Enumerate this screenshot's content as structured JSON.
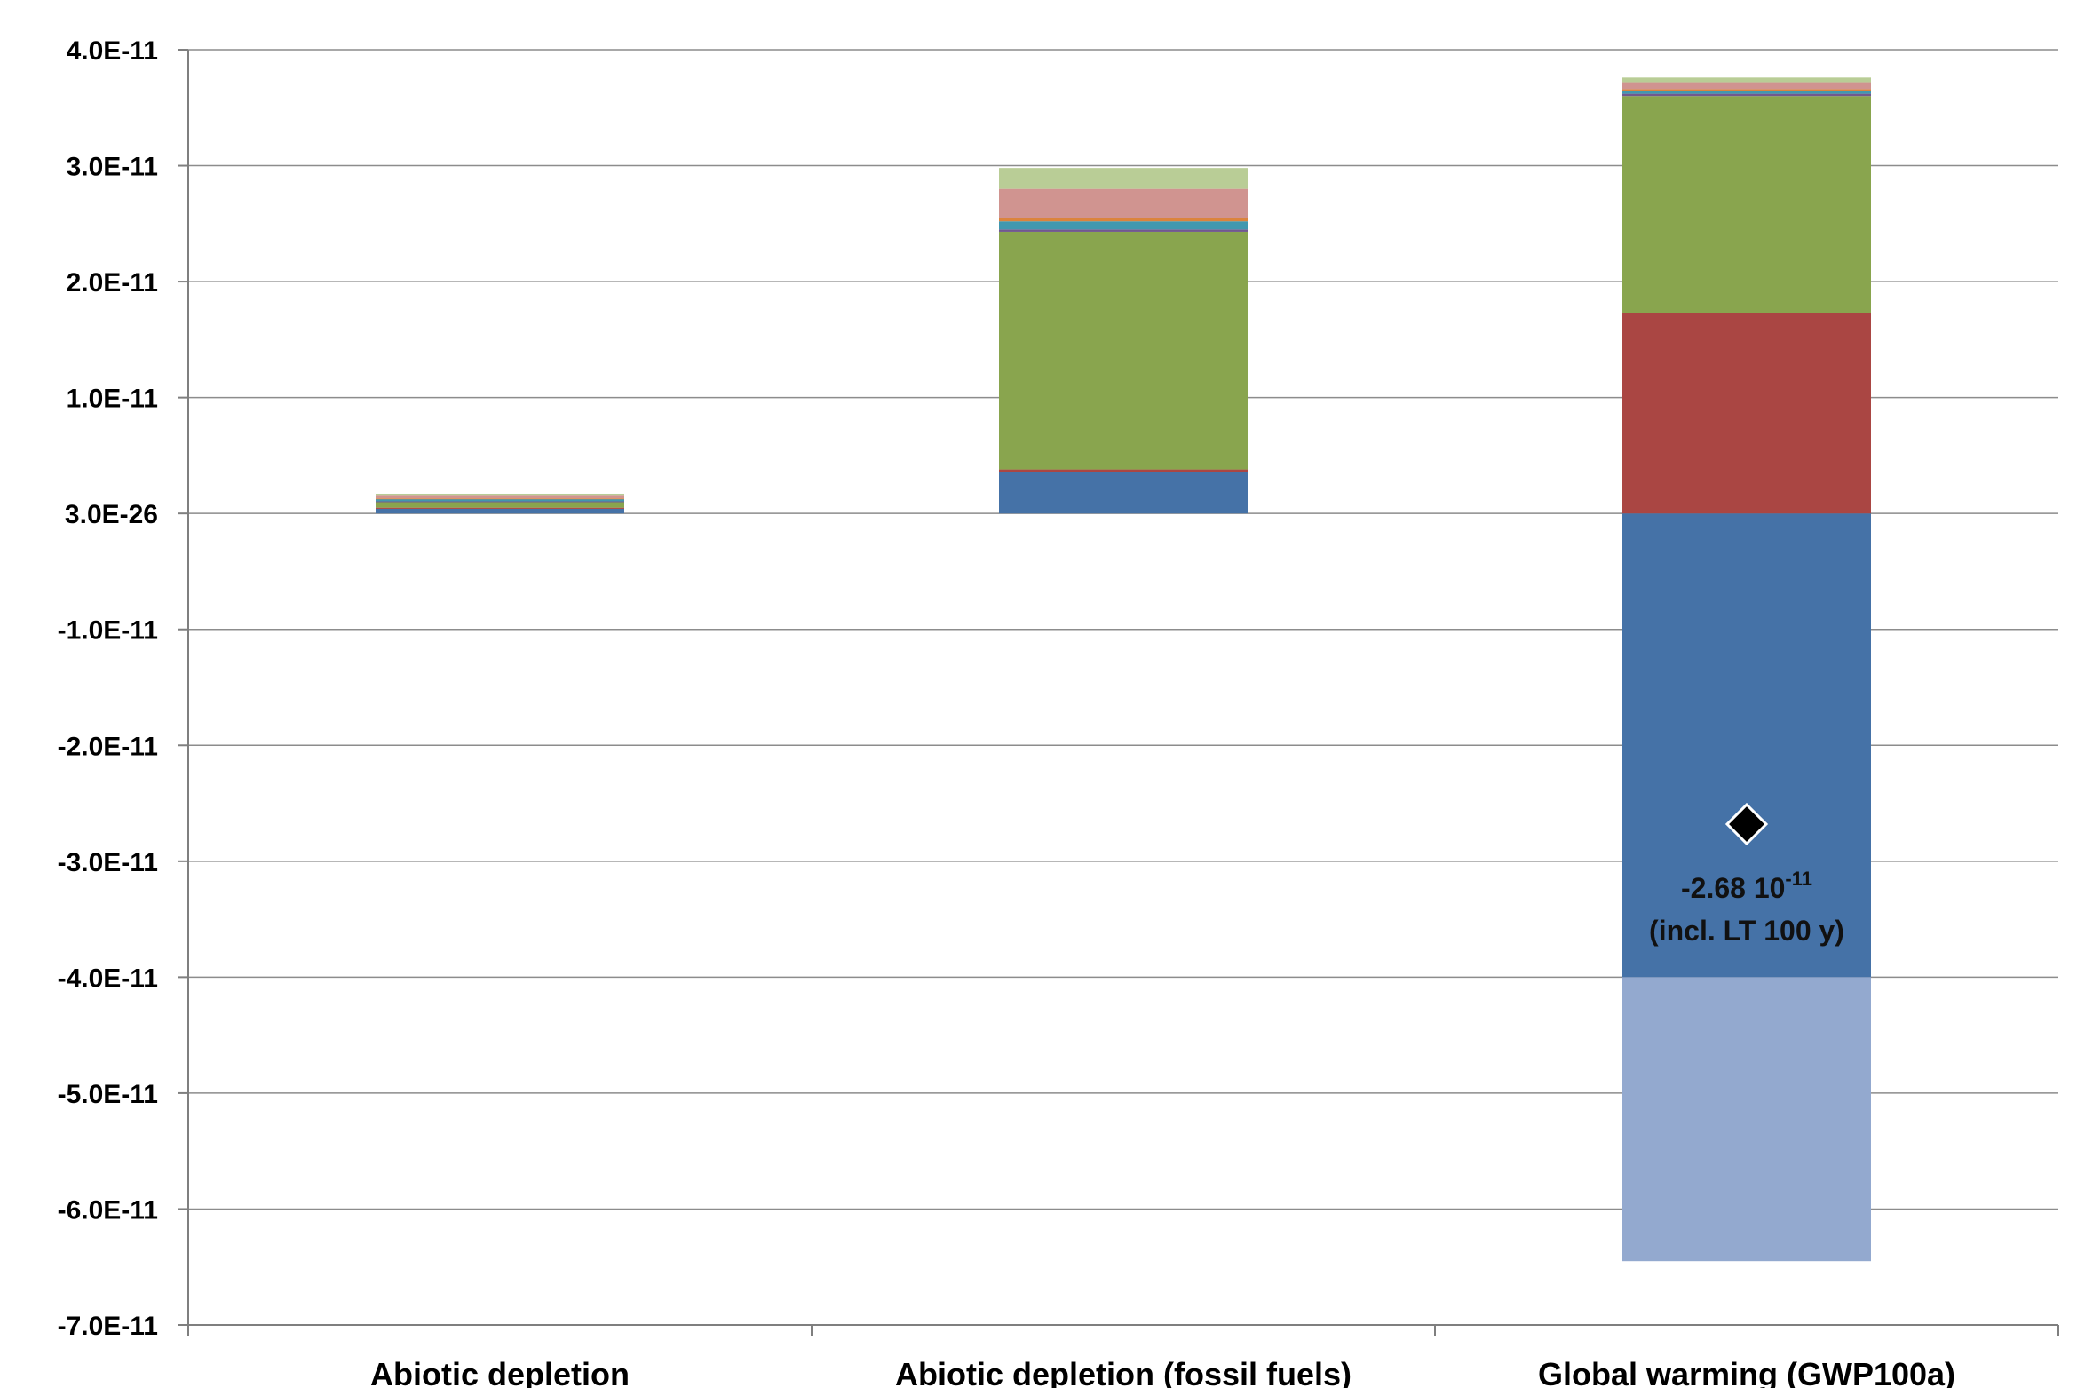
{
  "chart_data": {
    "type": "bar",
    "stacked": true,
    "title": "",
    "xlabel": "",
    "ylabel": "",
    "ylim": [
      -7e-11,
      4e-11
    ],
    "y_tick_labels": [
      "4.0E-11",
      "3.0E-11",
      "2.0E-11",
      "1.0E-11",
      "3.0E-26",
      "-1.0E-11",
      "-2.0E-11",
      "-3.0E-11",
      "-4.0E-11",
      "-5.0E-11",
      "-6.0E-11",
      "-7.0E-11"
    ],
    "y_tick_values": [
      4e-11,
      3e-11,
      2e-11,
      1e-11,
      0,
      -1e-11,
      -2e-11,
      -3e-11,
      -4e-11,
      -5e-11,
      -6e-11,
      -7e-11
    ],
    "grid": true,
    "legend": "none",
    "categories": [
      "Abiotic depletion",
      "Abiotic depletion (fossil fuels)",
      "Global warming (GWP100a)"
    ],
    "series": [
      {
        "color": "#4572A7",
        "values": [
          4e-13,
          3.6e-12,
          -4e-11
        ]
      },
      {
        "color": "#AA4643",
        "values": [
          1e-13,
          2e-13,
          1.73e-11
        ]
      },
      {
        "color": "#89A54E",
        "values": [
          5e-13,
          2.05e-11,
          1.87e-11
        ]
      },
      {
        "color": "#71588F",
        "values": [
          5e-14,
          2e-13,
          2e-13
        ]
      },
      {
        "color": "#4198AF",
        "values": [
          2e-13,
          7e-13,
          2e-13
        ]
      },
      {
        "color": "#DB843D",
        "values": [
          5e-14,
          3e-13,
          2e-13
        ]
      },
      {
        "color": "#D09490",
        "values": [
          3e-13,
          2.5e-12,
          6e-13
        ]
      },
      {
        "color": "#B9CD96",
        "values": [
          1e-13,
          1.8e-12,
          4e-13
        ]
      },
      {
        "color": "#93A9CF",
        "values": [
          0,
          0,
          -2.45e-11
        ]
      }
    ],
    "markers": [
      {
        "category_index": 2,
        "value": -2.68e-11,
        "shape": "diamond",
        "color": "#000000"
      }
    ],
    "annotation": {
      "category_index": 2,
      "mantissa": "-2.68 10",
      "exponent": "-11",
      "note": "(incl. LT 100 y)"
    }
  }
}
